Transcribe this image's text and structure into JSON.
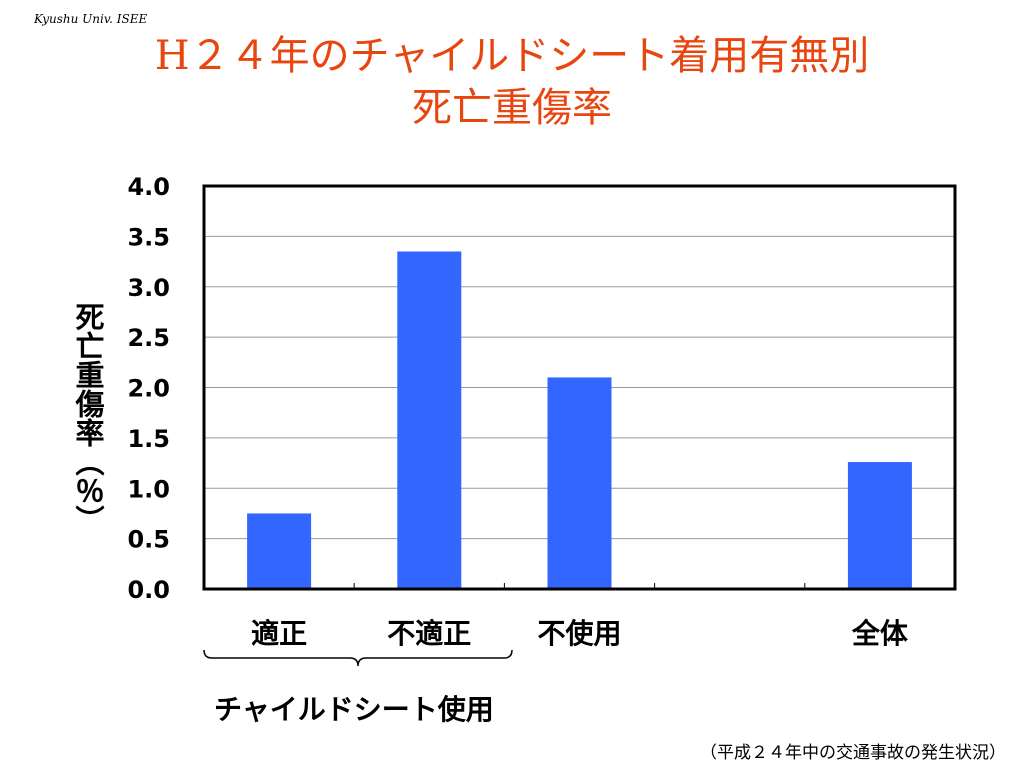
{
  "header": {
    "watermark": "Kyushu Univ. ISEE",
    "title_line1": "H２４年のチャイルドシート着用有無別",
    "title_line2": "死亡重傷率"
  },
  "footer": {
    "group_label": "チャイルドシート使用",
    "source": "（平成２４年中の交通事故の発生状況）"
  },
  "colors": {
    "bar": "#3366ff",
    "title": "#e8450f"
  },
  "chart_data": {
    "type": "bar",
    "title": "H２４年のチャイルドシート着用有無別 死亡重傷率",
    "ylabel": "死亡重傷率（％）",
    "xlabel": "",
    "categories": [
      "適正",
      "不適正",
      "不使用",
      "",
      "全体"
    ],
    "values": [
      0.75,
      3.35,
      2.1,
      null,
      1.26
    ],
    "ylim": [
      0,
      4.0
    ],
    "yticks": [
      "0.0",
      "0.5",
      "1.0",
      "1.5",
      "2.0",
      "2.5",
      "3.0",
      "3.5",
      "4.0"
    ],
    "ytick_values": [
      0,
      0.5,
      1.0,
      1.5,
      2.0,
      2.5,
      3.0,
      3.5,
      4.0
    ],
    "grid": true,
    "legend": "none",
    "bracket_group": {
      "label": "チャイルドシート使用",
      "categories": [
        "適正",
        "不適正"
      ]
    }
  }
}
